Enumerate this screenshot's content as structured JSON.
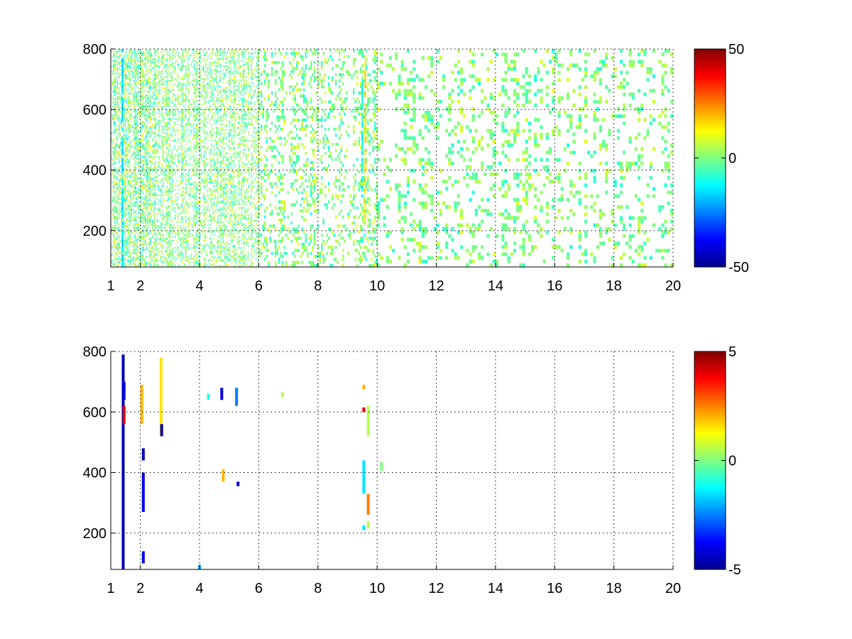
{
  "chart_data": [
    {
      "type": "heatmap",
      "colormap": "jet",
      "xlim": [
        1,
        20
      ],
      "ylim": [
        80,
        800
      ],
      "xticks": [
        1,
        2,
        4,
        6,
        8,
        10,
        12,
        14,
        16,
        18,
        20
      ],
      "xtick_labels": [
        "1",
        "2",
        "4",
        "6",
        "8",
        "10",
        "12",
        "14",
        "16",
        "18",
        "20"
      ],
      "yticks": [
        200,
        400,
        600,
        800
      ],
      "ytick_labels": [
        "200",
        "400",
        "600",
        "800"
      ],
      "grid": true,
      "colorbar": {
        "min": -50,
        "max": 50,
        "ticks": [
          -50,
          0,
          50
        ],
        "tick_labels": [
          "-50",
          "0",
          "50"
        ]
      },
      "density_profile": [
        {
          "x_from": 1,
          "x_to": 2.5,
          "fill": 0.45,
          "value_spread": 18,
          "sparsity": "fine"
        },
        {
          "x_from": 2.5,
          "x_to": 6,
          "fill": 0.35,
          "value_spread": 14,
          "sparsity": "fine"
        },
        {
          "x_from": 6,
          "x_to": 10,
          "fill": 0.25,
          "value_spread": 12,
          "sparsity": "medium"
        },
        {
          "x_from": 10,
          "x_to": 20,
          "fill": 0.2,
          "value_spread": 10,
          "sparsity": "coarse"
        }
      ],
      "features": [
        {
          "x": 1.4,
          "y_from": 80,
          "y_to": 800,
          "value": -15,
          "note": "cyan column"
        },
        {
          "x": 9.6,
          "y_from": 200,
          "y_to": 780,
          "value": 15,
          "note": "yellow column"
        },
        {
          "x": 9.5,
          "y_from": 300,
          "y_to": 700,
          "value": -12,
          "note": "cyan column"
        }
      ]
    },
    {
      "type": "heatmap",
      "colormap": "jet",
      "xlim": [
        1,
        20
      ],
      "ylim": [
        80,
        800
      ],
      "xticks": [
        1,
        2,
        4,
        6,
        8,
        10,
        12,
        14,
        16,
        18,
        20
      ],
      "xtick_labels": [
        "1",
        "2",
        "4",
        "6",
        "8",
        "10",
        "12",
        "14",
        "16",
        "18",
        "20"
      ],
      "yticks": [
        200,
        400,
        600,
        800
      ],
      "ytick_labels": [
        "200",
        "400",
        "600",
        "800"
      ],
      "grid": true,
      "colorbar": {
        "min": -5,
        "max": 5,
        "ticks": [
          -5,
          0,
          5
        ],
        "tick_labels": [
          "-5",
          "0",
          "5"
        ]
      },
      "cells": [
        {
          "x": 1.42,
          "y_from": 80,
          "y_to": 790,
          "value": -4.5
        },
        {
          "x": 1.45,
          "y_from": 560,
          "y_to": 620,
          "value": 4
        },
        {
          "x": 1.45,
          "y_from": 640,
          "y_to": 700,
          "value": -4
        },
        {
          "x": 2.05,
          "y_from": 560,
          "y_to": 690,
          "value": 2
        },
        {
          "x": 2.1,
          "y_from": 270,
          "y_to": 400,
          "value": -4
        },
        {
          "x": 2.1,
          "y_from": 440,
          "y_to": 480,
          "value": -4.5
        },
        {
          "x": 2.1,
          "y_from": 100,
          "y_to": 140,
          "value": -4
        },
        {
          "x": 2.7,
          "y_from": 520,
          "y_to": 780,
          "value": 1.5
        },
        {
          "x": 2.72,
          "y_from": 520,
          "y_to": 560,
          "value": -4.5
        },
        {
          "x": 4.0,
          "y_from": 80,
          "y_to": 95,
          "value": -2
        },
        {
          "x": 4.3,
          "y_from": 640,
          "y_to": 660,
          "value": -1
        },
        {
          "x": 4.75,
          "y_from": 640,
          "y_to": 680,
          "value": -4
        },
        {
          "x": 4.8,
          "y_from": 370,
          "y_to": 410,
          "value": 2
        },
        {
          "x": 5.25,
          "y_from": 620,
          "y_to": 680,
          "value": -2.5
        },
        {
          "x": 5.3,
          "y_from": 355,
          "y_to": 370,
          "value": -4
        },
        {
          "x": 6.8,
          "y_from": 650,
          "y_to": 665,
          "value": 0.5
        },
        {
          "x": 9.55,
          "y_from": 600,
          "y_to": 615,
          "value": 4
        },
        {
          "x": 9.55,
          "y_from": 330,
          "y_to": 440,
          "value": -1.5
        },
        {
          "x": 9.55,
          "y_from": 210,
          "y_to": 225,
          "value": -1.5
        },
        {
          "x": 9.55,
          "y_from": 675,
          "y_to": 690,
          "value": 2
        },
        {
          "x": 9.7,
          "y_from": 260,
          "y_to": 330,
          "value": 2.5
        },
        {
          "x": 9.7,
          "y_from": 520,
          "y_to": 620,
          "value": 0.5
        },
        {
          "x": 9.7,
          "y_from": 215,
          "y_to": 240,
          "value": 0.5
        },
        {
          "x": 10.15,
          "y_from": 405,
          "y_to": 435,
          "value": 0
        }
      ]
    }
  ]
}
